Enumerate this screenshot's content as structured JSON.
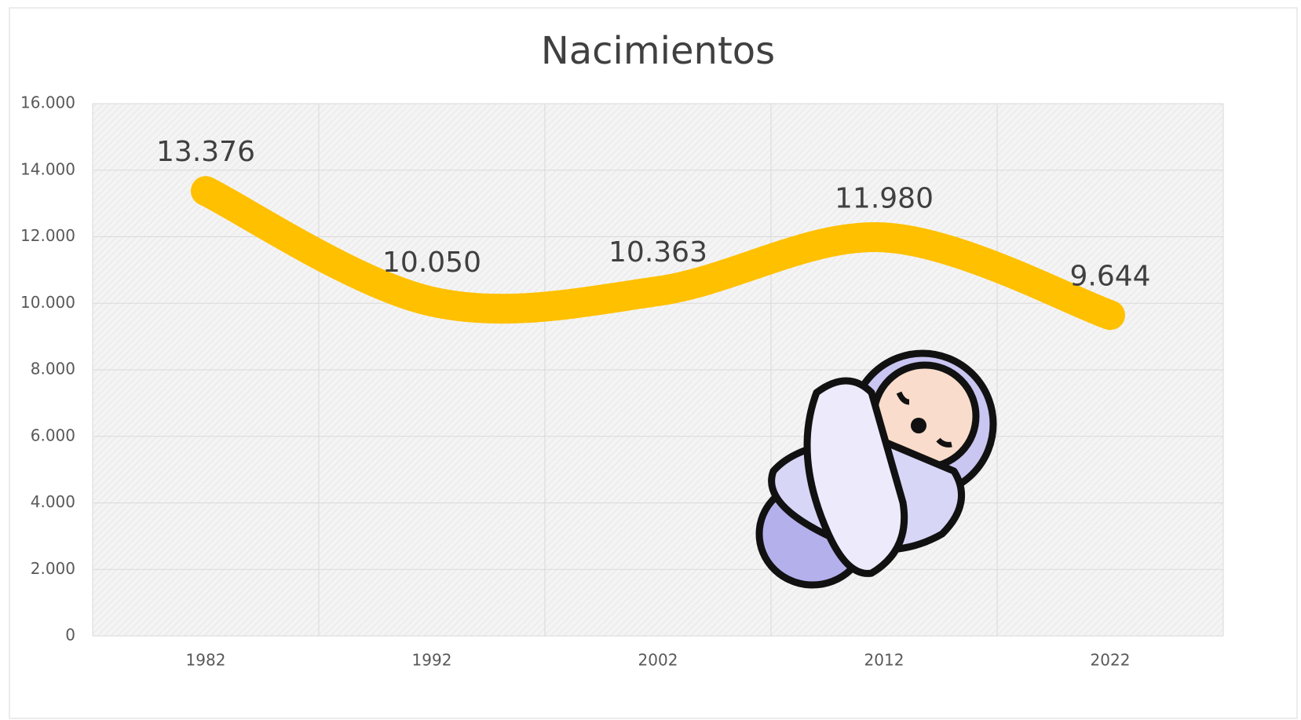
{
  "chart_data": {
    "type": "line",
    "title": "Nacimientos",
    "categories": [
      "1982",
      "1992",
      "2002",
      "2012",
      "2022"
    ],
    "values": [
      13376,
      10050,
      10363,
      11980,
      9644
    ],
    "value_labels": [
      "13.376",
      "10.050",
      "10.363",
      "11.980",
      "9.644"
    ],
    "color": "#ffc000",
    "smooth": true,
    "grid": true,
    "ylim": [
      0,
      16000
    ],
    "yticks": [
      0,
      {
        "value": 2000,
        "label": "2.000"
      },
      {
        "value": 4000,
        "label": "4.000"
      },
      {
        "value": 6000,
        "label": "6.000"
      },
      {
        "value": 8000,
        "label": "8.000"
      },
      {
        "value": 10000,
        "label": "10.000"
      },
      {
        "value": 12000,
        "label": "12.000"
      },
      {
        "value": 14000,
        "label": "14.000"
      },
      {
        "value": 16000,
        "label": "16.000"
      }
    ]
  }
}
